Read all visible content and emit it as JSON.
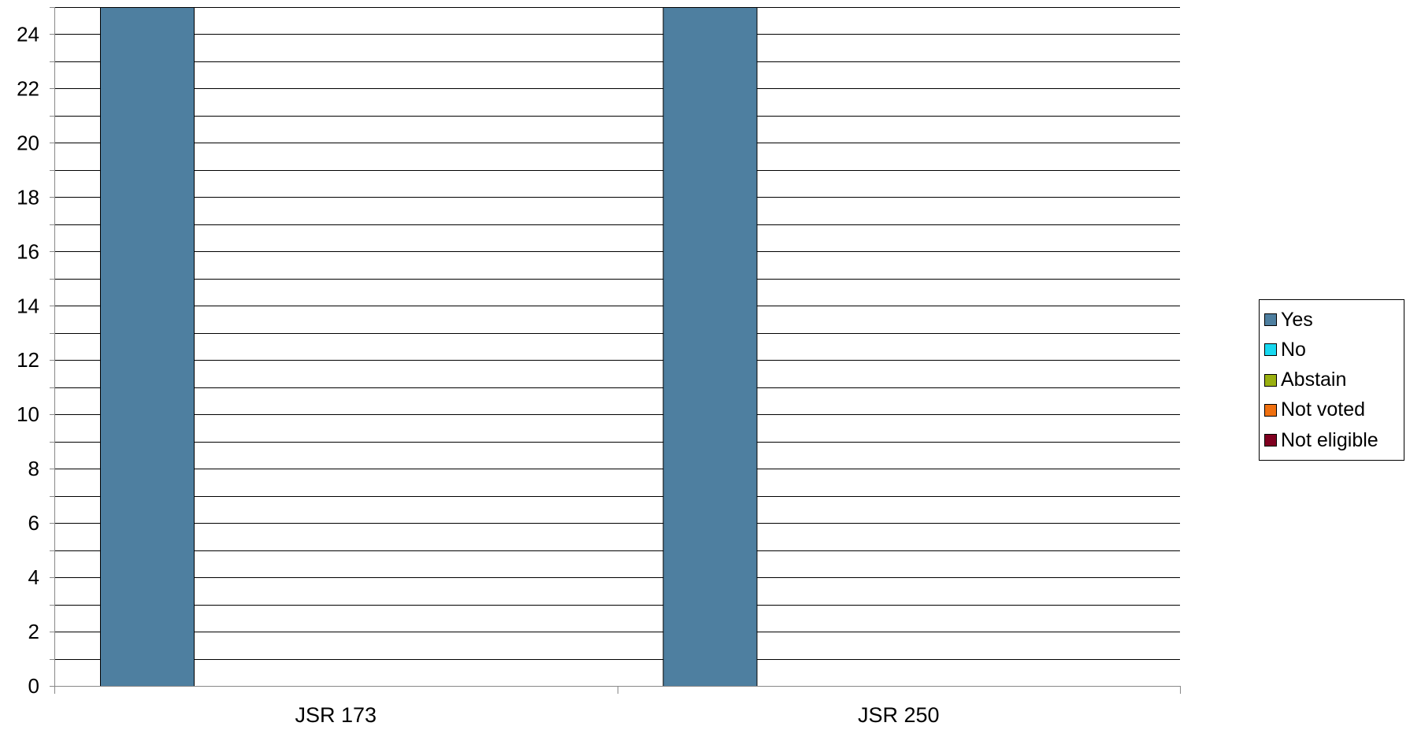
{
  "chart_data": {
    "type": "bar",
    "categories": [
      "JSR 173",
      "JSR 250"
    ],
    "series": [
      {
        "name": "Yes",
        "values": [
          25,
          25
        ],
        "color": "#4e7fa0"
      },
      {
        "name": "No",
        "values": [
          0,
          0
        ],
        "color": "#18d8f0"
      },
      {
        "name": "Abstain",
        "values": [
          0,
          0
        ],
        "color": "#9ab010"
      },
      {
        "name": "Not voted",
        "values": [
          0,
          0
        ],
        "color": "#f07010"
      },
      {
        "name": "Not eligible",
        "values": [
          0,
          0
        ],
        "color": "#800020"
      }
    ],
    "ylim": [
      0,
      25
    ],
    "yticks": [
      0,
      2,
      4,
      6,
      8,
      10,
      12,
      14,
      16,
      18,
      20,
      22,
      24
    ],
    "ytick_labels": [
      "0",
      "2",
      "4",
      "6",
      "8",
      "10",
      "12",
      "14",
      "16",
      "18",
      "20",
      "22",
      "24"
    ],
    "minor_grid_step": 1,
    "grid": true,
    "legend_position": "right",
    "title": "",
    "xlabel": "",
    "ylabel": ""
  }
}
